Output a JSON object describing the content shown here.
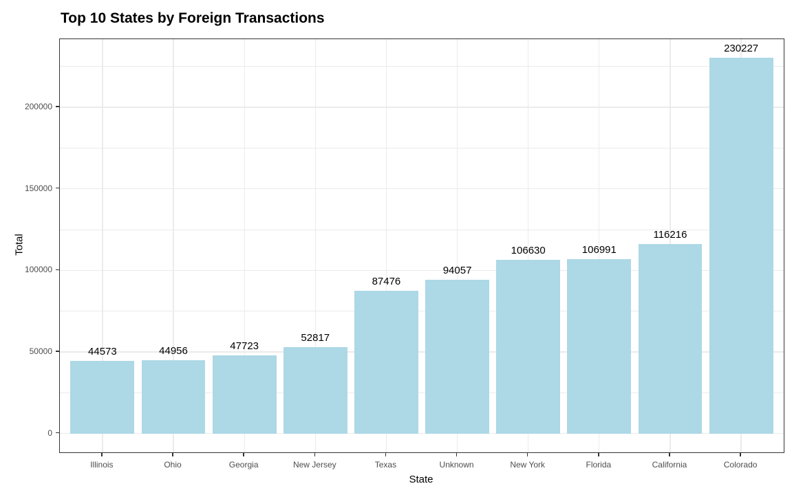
{
  "chart_data": {
    "type": "bar",
    "title": "Top 10 States by Foreign Transactions",
    "xlabel": "State",
    "ylabel": "Total",
    "categories": [
      "Illinois",
      "Ohio",
      "Georgia",
      "New Jersey",
      "Texas",
      "Unknown",
      "New York",
      "Florida",
      "California",
      "Colorado"
    ],
    "values": [
      44573,
      44956,
      47723,
      52817,
      87476,
      94057,
      106630,
      106991,
      116216,
      230227
    ],
    "value_labels": [
      44573,
      44956,
      47723,
      52817,
      87476,
      94057,
      106630,
      106991,
      116216,
      230227
    ],
    "yticks": [
      0,
      50000,
      100000,
      150000,
      200000
    ],
    "ylim": [
      0,
      230227
    ],
    "grid": "major-and-minor",
    "legend": "none",
    "colors": {
      "bar_fill": "#ADD8E6",
      "panel_border": "#333333",
      "gridline": "#EBEBEB",
      "tick_label": "#4D4D4D",
      "text": "#000000"
    }
  }
}
